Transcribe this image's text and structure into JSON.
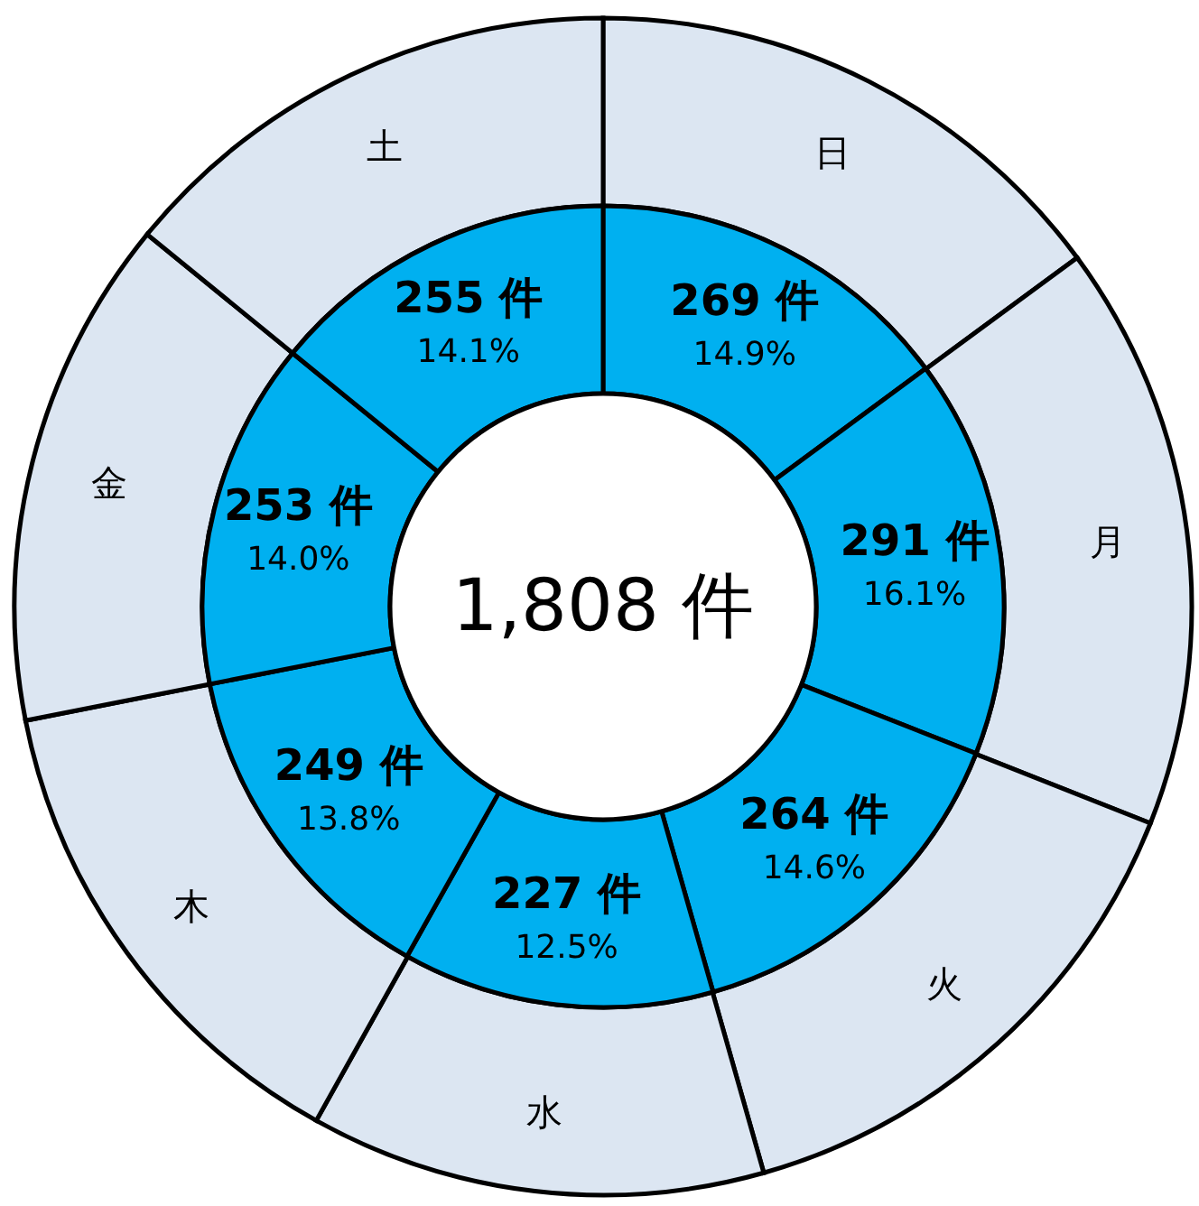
{
  "chart_data": {
    "type": "donut",
    "categories": [
      "日",
      "月",
      "火",
      "水",
      "木",
      "金",
      "土"
    ],
    "series": [
      {
        "color": "#dce6f2",
        "values": [
          14.9,
          16.1,
          14.6,
          12.5,
          13.8,
          14.0,
          14.1
        ]
      },
      {
        "color": "#00b0f0",
        "values": [
          269,
          291,
          264,
          227,
          249,
          253,
          255
        ],
        "value_labels": [
          "269 件",
          "291 件",
          "264 件",
          "227 件",
          "249 件",
          "253 件",
          "255 件"
        ]
      }
    ],
    "annotations": [
      "1,808 件",
      {
        "text": "14.9%",
        "x": "日"
      },
      {
        "text": "16.1%",
        "x": "月"
      },
      {
        "text": "14.6%",
        "x": "火"
      },
      {
        "text": "12.5%",
        "x": "水"
      },
      {
        "text": "13.8%",
        "x": "木"
      },
      {
        "text": "14.0%",
        "x": "金"
      },
      {
        "text": "14.1%",
        "x": "土"
      }
    ]
  }
}
